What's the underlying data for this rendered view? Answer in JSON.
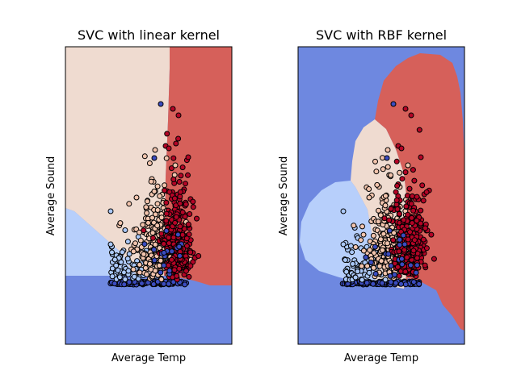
{
  "chart_data": [
    {
      "type": "scatter",
      "subtype": "decision-boundary",
      "title": "SVC with linear kernel",
      "xlabel": "Average Temp",
      "ylabel": "Average Sound",
      "ticks": "none",
      "grid": false,
      "legend": "none",
      "regions": [
        {
          "class": 0,
          "color": "#6e88e0"
        },
        {
          "class": 1,
          "color": "#b7cffb"
        },
        {
          "class": 2,
          "color": "#efdbd0"
        },
        {
          "class": 3,
          "color": "#d6605a"
        }
      ],
      "points": [
        {
          "class": 0,
          "color": "#3b4cc0"
        },
        {
          "class": 1,
          "color": "#aac8f8"
        },
        {
          "class": 2,
          "color": "#f2c4ad"
        },
        {
          "class": 3,
          "color": "#b40426"
        }
      ]
    },
    {
      "type": "scatter",
      "subtype": "decision-boundary",
      "title": "SVC with RBF kernel",
      "xlabel": "Average Temp",
      "ylabel": "Average Sound",
      "ticks": "none",
      "grid": false,
      "legend": "none",
      "regions": [
        {
          "class": 0,
          "color": "#6e88e0"
        },
        {
          "class": 1,
          "color": "#b7cffb"
        },
        {
          "class": 2,
          "color": "#efdbd0"
        },
        {
          "class": 3,
          "color": "#d6605a"
        }
      ],
      "points": [
        {
          "class": 0,
          "color": "#3b4cc0"
        },
        {
          "class": 1,
          "color": "#aac8f8"
        },
        {
          "class": 2,
          "color": "#f2c4ad"
        },
        {
          "class": 3,
          "color": "#b40426"
        }
      ]
    }
  ]
}
